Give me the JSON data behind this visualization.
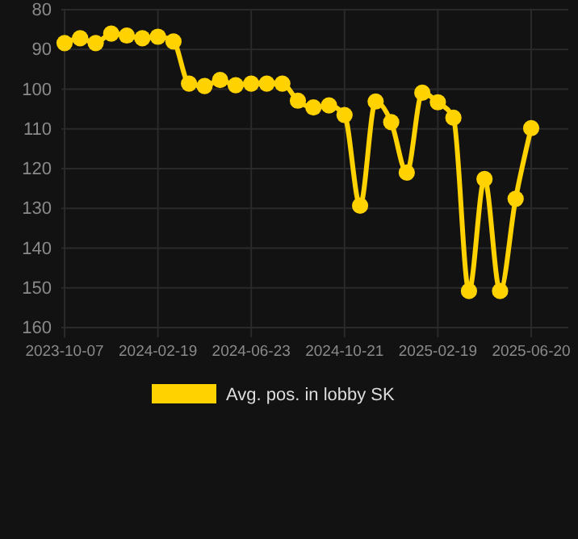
{
  "chart_data": {
    "type": "line",
    "categories": [
      "2023-10-07",
      null,
      null,
      null,
      null,
      null,
      "2024-02-19",
      null,
      null,
      null,
      null,
      null,
      "2024-06-23",
      null,
      null,
      null,
      null,
      null,
      "2024-10-21",
      null,
      null,
      null,
      null,
      null,
      "2025-02-19",
      null,
      null,
      null,
      null,
      null,
      "2025-06-20"
    ],
    "series": [
      {
        "name": "Avg. pos. in lobby SK",
        "color": "#ffd200",
        "values": [
          88.4,
          87.2,
          88.4,
          86,
          86.5,
          87.2,
          86.8,
          88,
          98.6,
          99.2,
          97.7,
          99,
          98.6,
          98.6,
          98.6,
          102.9,
          104.6,
          104.1,
          106.5,
          129.3,
          103.1,
          108.3,
          121,
          100.9,
          103.3,
          107.2,
          150.8,
          122.6,
          150.8,
          127.6,
          109.8
        ]
      }
    ],
    "ylim": [
      160,
      80
    ],
    "yticks": [
      80,
      90,
      100,
      110,
      120,
      130,
      140,
      150,
      160
    ],
    "grid": true,
    "legend": "bottom",
    "marker": "circle",
    "line_style": "solid"
  }
}
